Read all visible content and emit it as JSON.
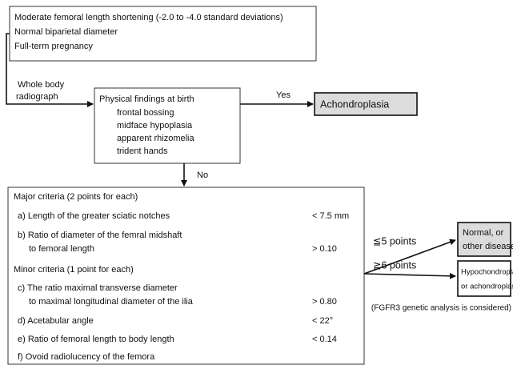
{
  "start": {
    "lines": [
      "Moderate femoral length shortening (-2.0 to -4.0 standard deviations)",
      "Normal biparietal diameter",
      "Full-term pregnancy"
    ]
  },
  "edge_whole_body": [
    "Whole body",
    "radiograph"
  ],
  "findings": {
    "title": "Physical findings at birth",
    "items": [
      "frontal bossing",
      "midface hypoplasia",
      "apparent rhizomelia",
      "trident hands"
    ]
  },
  "edge_yes": "Yes",
  "result_yes": "Achondroplasia",
  "edge_no": "No",
  "criteria": {
    "major": {
      "heading": "Major criteria (2 points for each)",
      "items": [
        {
          "label": [
            "a) Length of the greater sciatic notches"
          ],
          "threshold": "< 7.5 mm"
        },
        {
          "label": [
            "b) Ratio of diameter of the femral midshaft",
            "to femoral length"
          ],
          "threshold": "> 0.10"
        }
      ]
    },
    "minor": {
      "heading": "Minor criteria (1 point for each)",
      "items": [
        {
          "label": [
            "c) The ratio maximal transverse diameter",
            "to maximal longitudinal diameter of the ilia"
          ],
          "threshold": "> 0.80"
        },
        {
          "label": [
            "d) Acetabular angle"
          ],
          "threshold": "< 22°"
        },
        {
          "label": [
            "e) Ratio of femoral length to body length"
          ],
          "threshold": "< 0.14"
        },
        {
          "label": [
            "f) Ovoid radiolucency of the femora"
          ]
        }
      ]
    }
  },
  "edge_low": "≦5 points",
  "edge_high": "≧6 points",
  "result_low": [
    "Normal, or",
    "other disease"
  ],
  "result_high": [
    "Hypochondroplasia",
    "or achondroplasia"
  ],
  "note": "(FGFR3 genetic analysis is considered)"
}
